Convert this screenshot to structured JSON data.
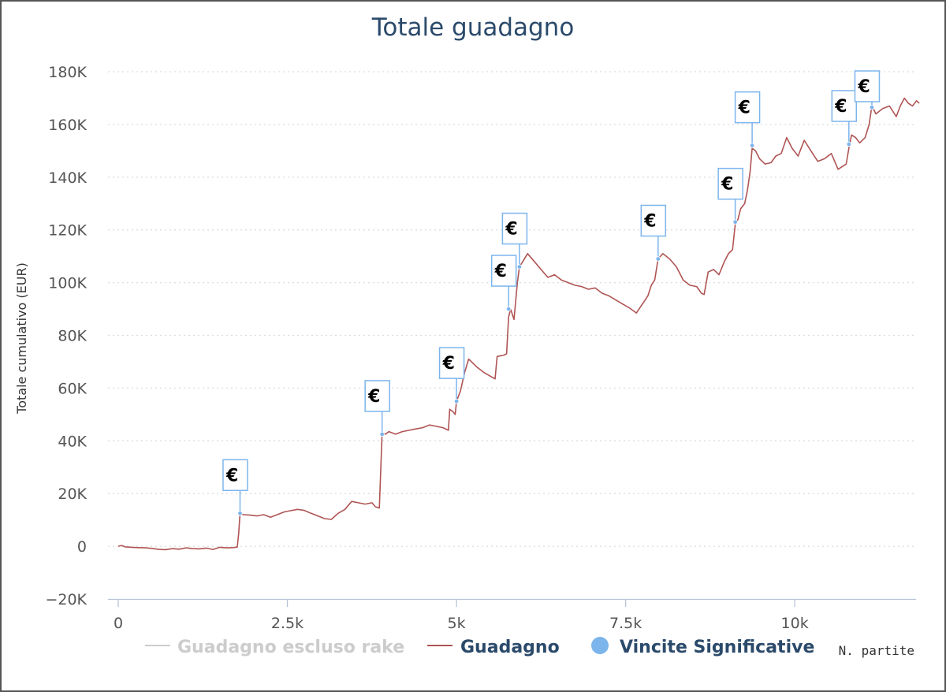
{
  "chart_data": {
    "type": "line",
    "title": "Totale guadagno",
    "ylabel": "Totale cumulativo (EUR)",
    "xlabel": "N. partite",
    "ylim": [
      -20000,
      180000
    ],
    "xlim": [
      0,
      11900
    ],
    "y_ticks": [
      -20000,
      0,
      20000,
      40000,
      60000,
      80000,
      100000,
      120000,
      140000,
      160000,
      180000
    ],
    "y_tick_labels": [
      "−20K",
      "0",
      "20K",
      "40K",
      "60K",
      "80K",
      "100K",
      "120K",
      "140K",
      "160K",
      "180K"
    ],
    "x_ticks": [
      0,
      2500,
      5000,
      7500,
      10000
    ],
    "x_tick_labels": [
      "0",
      "2.5k",
      "5k",
      "7.5k",
      "10k"
    ],
    "grid": "horizontal dotted",
    "legend": [
      {
        "name": "Guadagno escluso rake",
        "color": "#cccccc",
        "marker": "line",
        "hidden": true
      },
      {
        "name": "Guadagno",
        "color": "#b05454",
        "marker": "line",
        "hidden": false
      },
      {
        "name": "Vincite Significative",
        "color": "#7cb5ec",
        "marker": "circle",
        "hidden": false
      }
    ],
    "series": [
      {
        "name": "Guadagno",
        "color": "#b05454",
        "points": [
          [
            0,
            0
          ],
          [
            50,
            300
          ],
          [
            100,
            -200
          ],
          [
            200,
            -400
          ],
          [
            300,
            -500
          ],
          [
            400,
            -600
          ],
          [
            500,
            -800
          ],
          [
            600,
            -1200
          ],
          [
            700,
            -1300
          ],
          [
            800,
            -900
          ],
          [
            900,
            -1100
          ],
          [
            1000,
            -600
          ],
          [
            1100,
            -900
          ],
          [
            1200,
            -1000
          ],
          [
            1300,
            -700
          ],
          [
            1400,
            -1200
          ],
          [
            1500,
            -400
          ],
          [
            1600,
            -600
          ],
          [
            1700,
            -500
          ],
          [
            1760,
            -300
          ],
          [
            1780,
            5000
          ],
          [
            1800,
            12500
          ],
          [
            1850,
            12000
          ],
          [
            1950,
            11800
          ],
          [
            2050,
            11500
          ],
          [
            2150,
            12000
          ],
          [
            2250,
            11000
          ],
          [
            2350,
            12000
          ],
          [
            2450,
            13000
          ],
          [
            2550,
            13500
          ],
          [
            2650,
            14000
          ],
          [
            2750,
            13600
          ],
          [
            2850,
            12500
          ],
          [
            2950,
            11500
          ],
          [
            3050,
            10500
          ],
          [
            3150,
            10200
          ],
          [
            3250,
            12500
          ],
          [
            3350,
            14000
          ],
          [
            3450,
            17000
          ],
          [
            3550,
            16500
          ],
          [
            3650,
            16000
          ],
          [
            3750,
            16500
          ],
          [
            3800,
            15000
          ],
          [
            3860,
            14500
          ],
          [
            3900,
            43000
          ],
          [
            3950,
            42500
          ],
          [
            4000,
            43500
          ],
          [
            4100,
            42500
          ],
          [
            4200,
            43500
          ],
          [
            4300,
            44000
          ],
          [
            4400,
            44500
          ],
          [
            4500,
            45000
          ],
          [
            4600,
            46000
          ],
          [
            4700,
            45500
          ],
          [
            4800,
            45000
          ],
          [
            4880,
            44000
          ],
          [
            4900,
            52000
          ],
          [
            4950,
            51000
          ],
          [
            4980,
            50000
          ],
          [
            5000,
            55000
          ],
          [
            5060,
            59000
          ],
          [
            5120,
            66000
          ],
          [
            5180,
            71000
          ],
          [
            5300,
            68000
          ],
          [
            5400,
            66000
          ],
          [
            5500,
            64500
          ],
          [
            5570,
            63500
          ],
          [
            5600,
            72000
          ],
          [
            5700,
            72500
          ],
          [
            5740,
            73000
          ],
          [
            5770,
            87000
          ],
          [
            5800,
            90000
          ],
          [
            5850,
            86000
          ],
          [
            5900,
            100000
          ],
          [
            5930,
            106000
          ],
          [
            5980,
            108000
          ],
          [
            6050,
            111000
          ],
          [
            6150,
            108000
          ],
          [
            6250,
            105000
          ],
          [
            6350,
            102000
          ],
          [
            6450,
            103000
          ],
          [
            6550,
            101000
          ],
          [
            6650,
            100000
          ],
          [
            6750,
            99000
          ],
          [
            6850,
            98500
          ],
          [
            6950,
            97500
          ],
          [
            7050,
            98000
          ],
          [
            7150,
            96000
          ],
          [
            7250,
            95000
          ],
          [
            7350,
            93500
          ],
          [
            7450,
            92000
          ],
          [
            7550,
            90500
          ],
          [
            7660,
            88500
          ],
          [
            7750,
            92000
          ],
          [
            7830,
            95000
          ],
          [
            7880,
            99000
          ],
          [
            7930,
            101000
          ],
          [
            7980,
            109000
          ],
          [
            8050,
            111000
          ],
          [
            8150,
            109000
          ],
          [
            8250,
            106000
          ],
          [
            8350,
            101000
          ],
          [
            8450,
            99000
          ],
          [
            8550,
            98500
          ],
          [
            8620,
            96000
          ],
          [
            8660,
            95500
          ],
          [
            8720,
            104000
          ],
          [
            8800,
            105000
          ],
          [
            8880,
            103000
          ],
          [
            8960,
            108000
          ],
          [
            9020,
            111000
          ],
          [
            9080,
            112500
          ],
          [
            9120,
            122000
          ],
          [
            9160,
            124000
          ],
          [
            9200,
            128000
          ],
          [
            9260,
            130000
          ],
          [
            9300,
            135000
          ],
          [
            9340,
            142000
          ],
          [
            9370,
            151000
          ],
          [
            9420,
            150000
          ],
          [
            9480,
            147000
          ],
          [
            9560,
            145000
          ],
          [
            9650,
            145500
          ],
          [
            9720,
            148000
          ],
          [
            9800,
            149000
          ],
          [
            9880,
            155000
          ],
          [
            9960,
            151000
          ],
          [
            10050,
            148000
          ],
          [
            10140,
            154000
          ],
          [
            10240,
            150000
          ],
          [
            10340,
            146000
          ],
          [
            10440,
            147000
          ],
          [
            10540,
            149000
          ],
          [
            10640,
            143000
          ],
          [
            10760,
            145000
          ],
          [
            10800,
            151000
          ],
          [
            10840,
            156000
          ],
          [
            10900,
            155000
          ],
          [
            10960,
            153000
          ],
          [
            11040,
            155000
          ],
          [
            11100,
            160000
          ],
          [
            11140,
            167000
          ],
          [
            11200,
            164000
          ],
          [
            11300,
            166000
          ],
          [
            11400,
            167000
          ],
          [
            11500,
            163000
          ],
          [
            11560,
            167000
          ],
          [
            11620,
            170000
          ],
          [
            11680,
            168000
          ],
          [
            11740,
            167000
          ],
          [
            11800,
            169000
          ],
          [
            11840,
            168000
          ]
        ]
      }
    ],
    "significant_wins": [
      {
        "x": 1800,
        "y": 12500
      },
      {
        "x": 3900,
        "y": 42500
      },
      {
        "x": 5000,
        "y": 55000
      },
      {
        "x": 5770,
        "y": 90000
      },
      {
        "x": 5930,
        "y": 106000
      },
      {
        "x": 7980,
        "y": 109000
      },
      {
        "x": 9120,
        "y": 123000
      },
      {
        "x": 9370,
        "y": 152000
      },
      {
        "x": 10800,
        "y": 152500
      },
      {
        "x": 11140,
        "y": 166500
      }
    ],
    "flag_symbol": "€"
  }
}
